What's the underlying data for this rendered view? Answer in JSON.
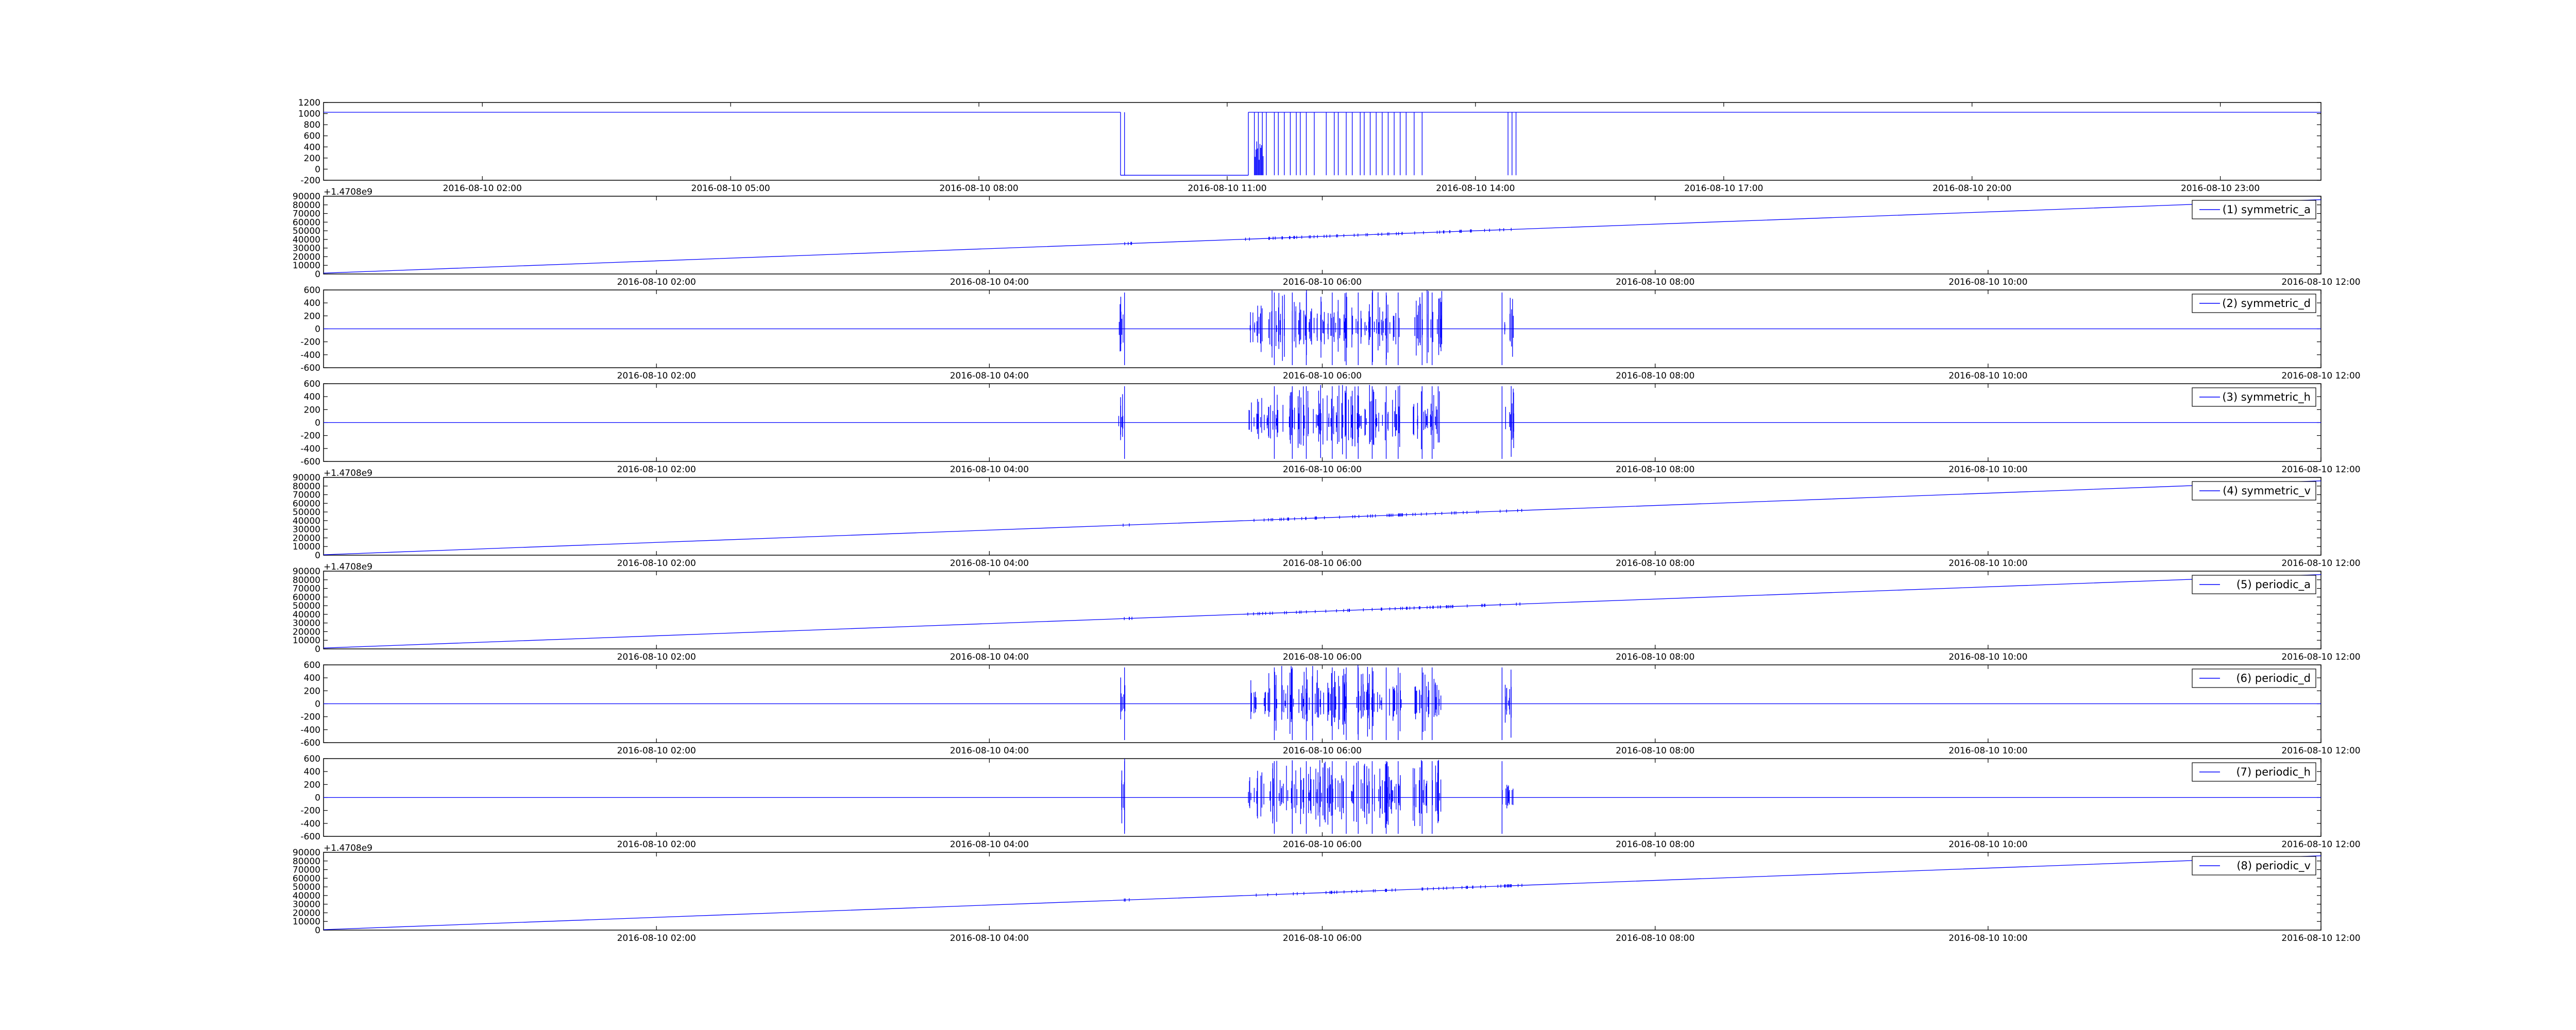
{
  "colors": {
    "line": "#0000ff",
    "axes": "#000000",
    "background": "#ffffff"
  },
  "chart_data": [
    {
      "type": "line",
      "kind": "raw",
      "ylim": [
        -200,
        1200
      ],
      "yticks": [
        -200,
        0,
        200,
        400,
        600,
        800,
        1000,
        1200
      ],
      "x_ticks": [
        "2016-08-10 02:00",
        "2016-08-10 05:00",
        "2016-08-10 08:00",
        "2016-08-10 11:00",
        "2016-08-10 14:00",
        "2016-08-10 17:00",
        "2016-08-10 20:00",
        "2016-08-10 23:00"
      ],
      "series": [
        {
          "base": 1024,
          "low": -110,
          "gaps": [
            [
              0.399,
              0.463
            ]
          ]
        }
      ]
    },
    {
      "type": "line",
      "kind": "ramp",
      "ylim": [
        0,
        90000
      ],
      "yticks": [
        0,
        10000,
        20000,
        30000,
        40000,
        50000,
        60000,
        70000,
        80000,
        90000
      ],
      "offset_label": "+1.4708e9",
      "x_ticks": [
        "2016-08-10 02:00",
        "2016-08-10 04:00",
        "2016-08-10 06:00",
        "2016-08-10 08:00",
        "2016-08-10 10:00",
        "2016-08-10 12:00"
      ],
      "series": [
        {
          "name": "(1) symmetric_a",
          "y_start": 1000,
          "y_end": 86000
        }
      ]
    },
    {
      "type": "line",
      "kind": "detail",
      "ylim": [
        -600,
        600
      ],
      "yticks": [
        -600,
        -400,
        -200,
        0,
        200,
        400,
        600
      ],
      "x_ticks": [
        "2016-08-10 02:00",
        "2016-08-10 04:00",
        "2016-08-10 06:00",
        "2016-08-10 08:00",
        "2016-08-10 10:00",
        "2016-08-10 12:00"
      ],
      "series": [
        {
          "name": "(2) symmetric_d",
          "baseline": 0
        }
      ]
    },
    {
      "type": "line",
      "kind": "detail",
      "ylim": [
        -600,
        600
      ],
      "yticks": [
        -600,
        -400,
        -200,
        0,
        200,
        400,
        600
      ],
      "x_ticks": [
        "2016-08-10 02:00",
        "2016-08-10 04:00",
        "2016-08-10 06:00",
        "2016-08-10 08:00",
        "2016-08-10 10:00",
        "2016-08-10 12:00"
      ],
      "series": [
        {
          "name": "(3) symmetric_h",
          "baseline": 0
        }
      ]
    },
    {
      "type": "line",
      "kind": "ramp",
      "ylim": [
        0,
        90000
      ],
      "yticks": [
        0,
        10000,
        20000,
        30000,
        40000,
        50000,
        60000,
        70000,
        80000,
        90000
      ],
      "offset_label": "+1.4708e9",
      "x_ticks": [
        "2016-08-10 02:00",
        "2016-08-10 04:00",
        "2016-08-10 06:00",
        "2016-08-10 08:00",
        "2016-08-10 10:00",
        "2016-08-10 12:00"
      ],
      "series": [
        {
          "name": "(4) symmetric_v",
          "y_start": 500,
          "y_end": 86000
        }
      ]
    },
    {
      "type": "line",
      "kind": "ramp",
      "ylim": [
        0,
        90000
      ],
      "yticks": [
        0,
        10000,
        20000,
        30000,
        40000,
        50000,
        60000,
        70000,
        80000,
        90000
      ],
      "offset_label": "+1.4708e9",
      "x_ticks": [
        "2016-08-10 02:00",
        "2016-08-10 04:00",
        "2016-08-10 06:00",
        "2016-08-10 08:00",
        "2016-08-10 10:00",
        "2016-08-10 12:00"
      ],
      "series": [
        {
          "name": "(5) periodic_a",
          "y_start": 1000,
          "y_end": 86000
        }
      ]
    },
    {
      "type": "line",
      "kind": "detail",
      "ylim": [
        -600,
        600
      ],
      "yticks": [
        -600,
        -400,
        -200,
        0,
        200,
        400,
        600
      ],
      "x_ticks": [
        "2016-08-10 02:00",
        "2016-08-10 04:00",
        "2016-08-10 06:00",
        "2016-08-10 08:00",
        "2016-08-10 10:00",
        "2016-08-10 12:00"
      ],
      "series": [
        {
          "name": "(6) periodic_d",
          "baseline": 0
        }
      ]
    },
    {
      "type": "line",
      "kind": "detail",
      "ylim": [
        -600,
        600
      ],
      "yticks": [
        -600,
        -400,
        -200,
        0,
        200,
        400,
        600
      ],
      "x_ticks": [
        "2016-08-10 02:00",
        "2016-08-10 04:00",
        "2016-08-10 06:00",
        "2016-08-10 08:00",
        "2016-08-10 10:00",
        "2016-08-10 12:00"
      ],
      "series": [
        {
          "name": "(7) periodic_h",
          "baseline": 0
        }
      ]
    },
    {
      "type": "line",
      "kind": "ramp",
      "ylim": [
        0,
        90000
      ],
      "yticks": [
        0,
        10000,
        20000,
        30000,
        40000,
        50000,
        60000,
        70000,
        80000,
        90000
      ],
      "offset_label": "+1.4708e9",
      "x_ticks": [
        "2016-08-10 02:00",
        "2016-08-10 04:00",
        "2016-08-10 06:00",
        "2016-08-10 08:00",
        "2016-08-10 10:00",
        "2016-08-10 12:00"
      ],
      "series": [
        {
          "name": "(8) periodic_v",
          "y_start": 500,
          "y_end": 86000
        }
      ]
    }
  ]
}
